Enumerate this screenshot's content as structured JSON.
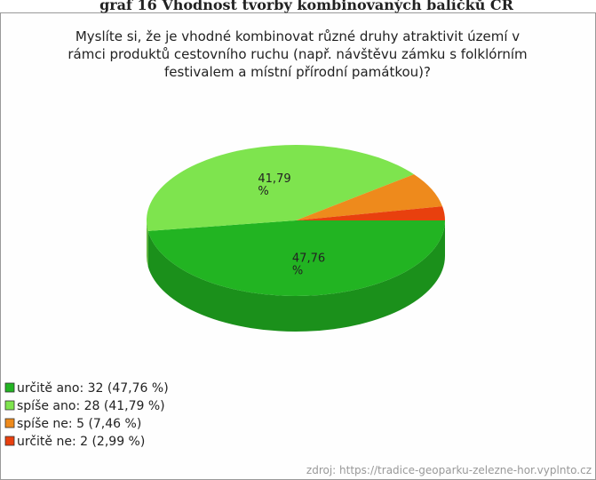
{
  "heading": "graf 16 Vhodnost tvorby kombinovaných balíčků CR",
  "chart_data": {
    "type": "pie3d",
    "title": [
      "Myslíte si, že je vhodné kombinovat různé druhy atraktivit území v",
      "rámci produktů cestovního ruchu (např. návštěvu zámku s folklórním",
      "festivalem a místní přírodní památkou)?"
    ],
    "categories": [
      "určitě ano",
      "spíše ano",
      "spíše ne",
      "určitě ne"
    ],
    "values": [
      47.76,
      41.79,
      7.46,
      2.99
    ],
    "value_labels": [
      [
        "47,76",
        "%"
      ],
      [
        "41,79",
        "%"
      ],
      null,
      null
    ],
    "colors": [
      "#22b422",
      "#7ee44e",
      "#ee8a1c",
      "#e8400e"
    ],
    "legend_labels": [
      "určitě ano: 32 (47,76 %)",
      "spíše ano: 28 (41,79 %)",
      "spíše ne: 5 (7,46 %)",
      "určitě ne: 2 (2,99 %)"
    ],
    "source": "zdroj: https://tradice-geoparku-zelezne-hor.vyplnto.cz"
  }
}
